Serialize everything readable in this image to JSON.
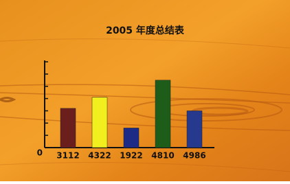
{
  "chart_data": {
    "type": "bar",
    "title": "2005 年度总结表",
    "categories": [
      "3112",
      "4322",
      "1922",
      "4810",
      "4986"
    ],
    "values": [
      3.2,
      4.1,
      1.6,
      5.5,
      3.0
    ],
    "colors": [
      "#6a1f1c",
      "#f2ef1e",
      "#1d2a86",
      "#1d5c19",
      "#26398c"
    ],
    "ylim": [
      0,
      7
    ],
    "yticks": [
      0,
      1,
      2,
      3,
      4,
      5,
      6,
      7
    ]
  }
}
